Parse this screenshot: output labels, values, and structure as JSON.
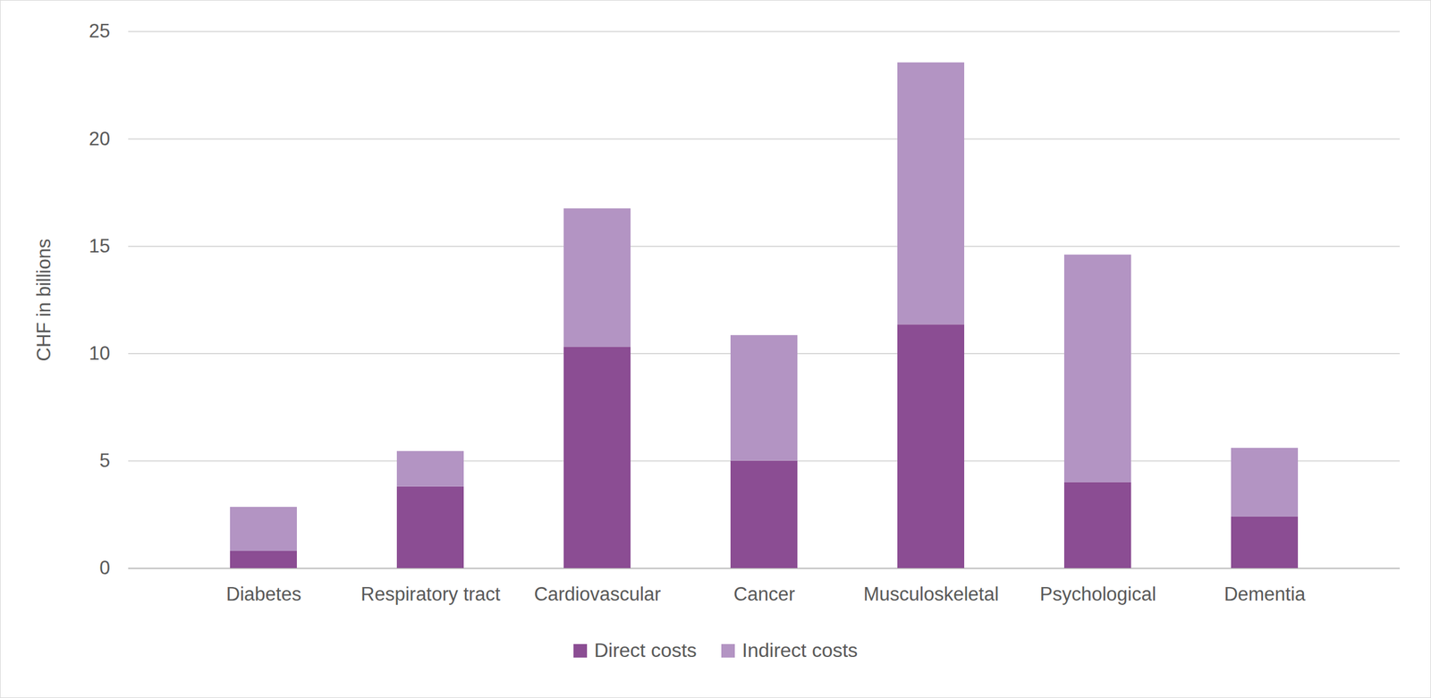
{
  "chart_data": {
    "type": "bar",
    "stacked": true,
    "y_label": "CHF in billions",
    "categories": [
      "Diabetes",
      "Respiratory tract",
      "Cardiovascular",
      "Cancer",
      "Musculoskeletal",
      "Psychological",
      "Dementia"
    ],
    "series": [
      {
        "name": "Direct costs",
        "color": "#8b4d93",
        "values": [
          0.8,
          3.8,
          10.3,
          5.0,
          11.35,
          4.0,
          2.4
        ]
      },
      {
        "name": "Indirect costs",
        "color": "#b394c3",
        "values": [
          2.05,
          1.65,
          6.45,
          5.85,
          12.2,
          10.6,
          3.2
        ]
      }
    ],
    "ylim": [
      0,
      25
    ],
    "yticks": [
      0,
      5,
      10,
      15,
      20,
      25
    ],
    "grid": true,
    "legend": "bottom"
  }
}
